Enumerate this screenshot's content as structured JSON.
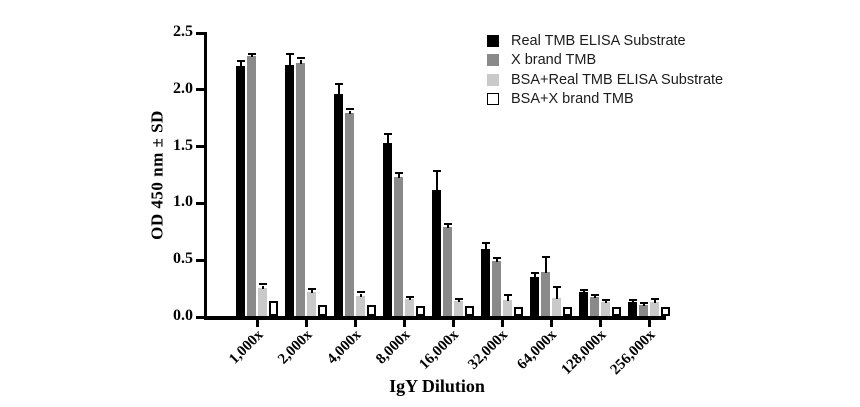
{
  "chart_data": {
    "type": "bar",
    "title": "",
    "xlabel": "IgY Dilution",
    "ylabel": "OD 450 nm ± SD",
    "ylim": [
      0,
      2.5
    ],
    "ytick_labels": [
      "0.0",
      "0.5",
      "1.0",
      "1.5",
      "2.0",
      "2.5"
    ],
    "grid": false,
    "legend_position": "top-right",
    "error_bars": "upper, SD",
    "categories": [
      "1,000x",
      "2,000x",
      "4,000x",
      "8,000x",
      "16,000x",
      "32,000x",
      "64,000x",
      "128,000x",
      "256,000x"
    ],
    "series": [
      {
        "name": "Real TMB ELISA Substrate",
        "color": "#000000",
        "border": "#000000",
        "values": [
          2.2,
          2.21,
          1.95,
          1.52,
          1.11,
          0.59,
          0.34,
          0.21,
          0.12
        ],
        "errors": [
          0.04,
          0.09,
          0.08,
          0.07,
          0.16,
          0.04,
          0.03,
          0.01,
          0.01
        ]
      },
      {
        "name": "X brand TMB",
        "color": "#8a8a8a",
        "border": "#8a8a8a",
        "values": [
          2.29,
          2.23,
          1.79,
          1.22,
          0.78,
          0.48,
          0.39,
          0.17,
          0.1
        ],
        "errors": [
          0.01,
          0.03,
          0.02,
          0.03,
          0.02,
          0.02,
          0.12,
          0.01,
          0.01
        ]
      },
      {
        "name": "BSA+Real TMB ELISA Substrate",
        "color": "#c9c9c9",
        "border": "#c9c9c9",
        "values": [
          0.25,
          0.21,
          0.18,
          0.15,
          0.13,
          0.14,
          0.16,
          0.12,
          0.12
        ],
        "errors": [
          0.02,
          0.02,
          0.02,
          0.01,
          0.01,
          0.04,
          0.09,
          0.01,
          0.02
        ]
      },
      {
        "name": "BSA+X brand TMB",
        "color": "#ffffff",
        "border": "#000000",
        "values": [
          0.13,
          0.1,
          0.1,
          0.09,
          0.09,
          0.08,
          0.08,
          0.08,
          0.08
        ],
        "errors": [
          0,
          0,
          0,
          0,
          0,
          0,
          0,
          0,
          0
        ]
      }
    ]
  }
}
